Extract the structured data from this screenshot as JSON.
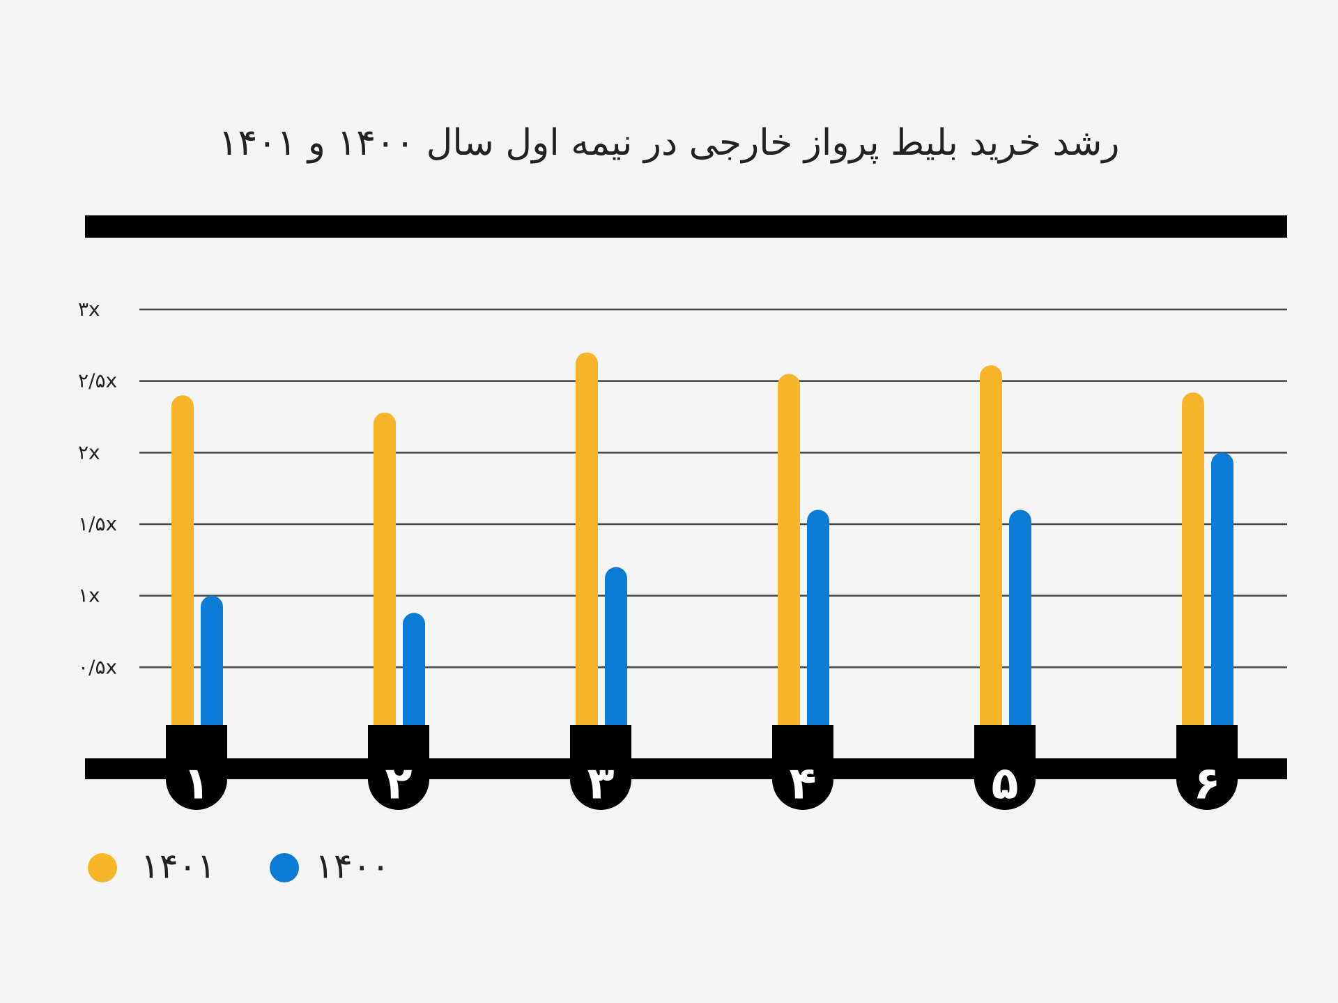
{
  "chart_data": {
    "type": "bar",
    "title": "رشد خرید بلیط پرواز خارجی در نیمه اول سال ۱۴۰۰ و ۱۴۰۱",
    "xlabel": "",
    "ylabel": "",
    "categories": [
      "۱",
      "۲",
      "۳",
      "۴",
      "۵",
      "۶"
    ],
    "series": [
      {
        "name": "۱۴۰۱",
        "color": "#f7b52a",
        "values": [
          2.4,
          2.28,
          2.7,
          2.55,
          2.61,
          2.42
        ]
      },
      {
        "name": "۱۴۰۰",
        "color": "#0c7bd6",
        "values": [
          1.0,
          0.88,
          1.2,
          1.6,
          1.6,
          2.0
        ]
      }
    ],
    "yticks": [
      {
        "value": 0.5,
        "label": "۰/۵x"
      },
      {
        "value": 1,
        "label": "۱x"
      },
      {
        "value": 1.5,
        "label": "۱/۵x"
      },
      {
        "value": 2,
        "label": "۲x"
      },
      {
        "value": 2.5,
        "label": "۲/۵x"
      },
      {
        "value": 3,
        "label": "۳x"
      }
    ],
    "ylim": [
      0,
      3
    ],
    "grid": true,
    "legend_position": "bottom-left",
    "colors": {
      "background": "#f5f5f5",
      "axis": "#000000",
      "grid": "#444444",
      "text": "#222222",
      "category_label": "#ffffff"
    }
  }
}
